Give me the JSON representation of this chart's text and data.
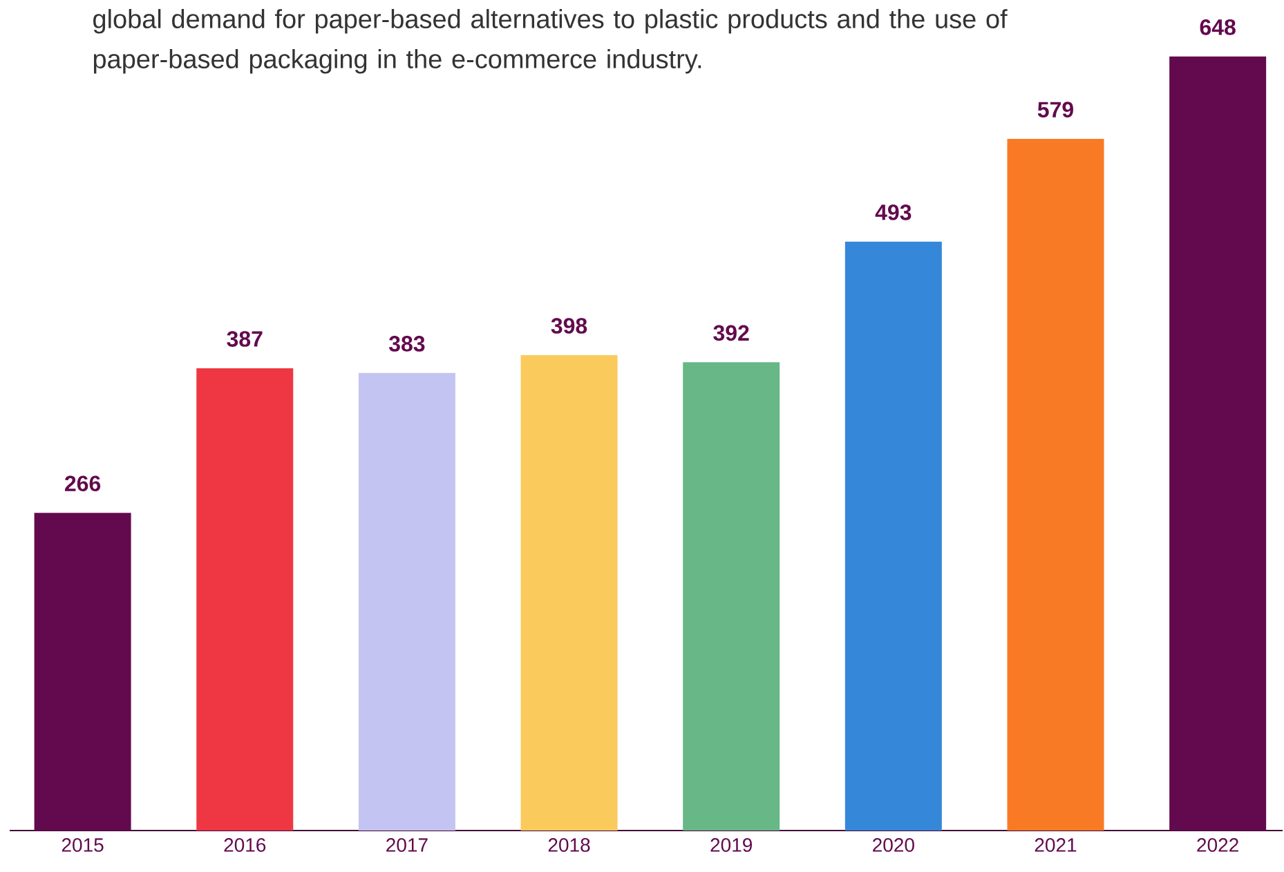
{
  "chart_data": {
    "type": "bar",
    "annotations": [
      "global demand for paper-based alternatives to plastic products and the use of paper-based packaging in the e-commerce industry."
    ],
    "categories": [
      "2015",
      "2016",
      "2017",
      "2018",
      "2019",
      "2020",
      "2021",
      "2022"
    ],
    "values": [
      266,
      387,
      383,
      398,
      392,
      493,
      579,
      648
    ],
    "colors": [
      "#630a4e",
      "#ef3744",
      "#c4c4f3",
      "#fbca5c",
      "#67b787",
      "#3587d9",
      "#f97a25",
      "#630a4e"
    ],
    "data_labels": true
  }
}
